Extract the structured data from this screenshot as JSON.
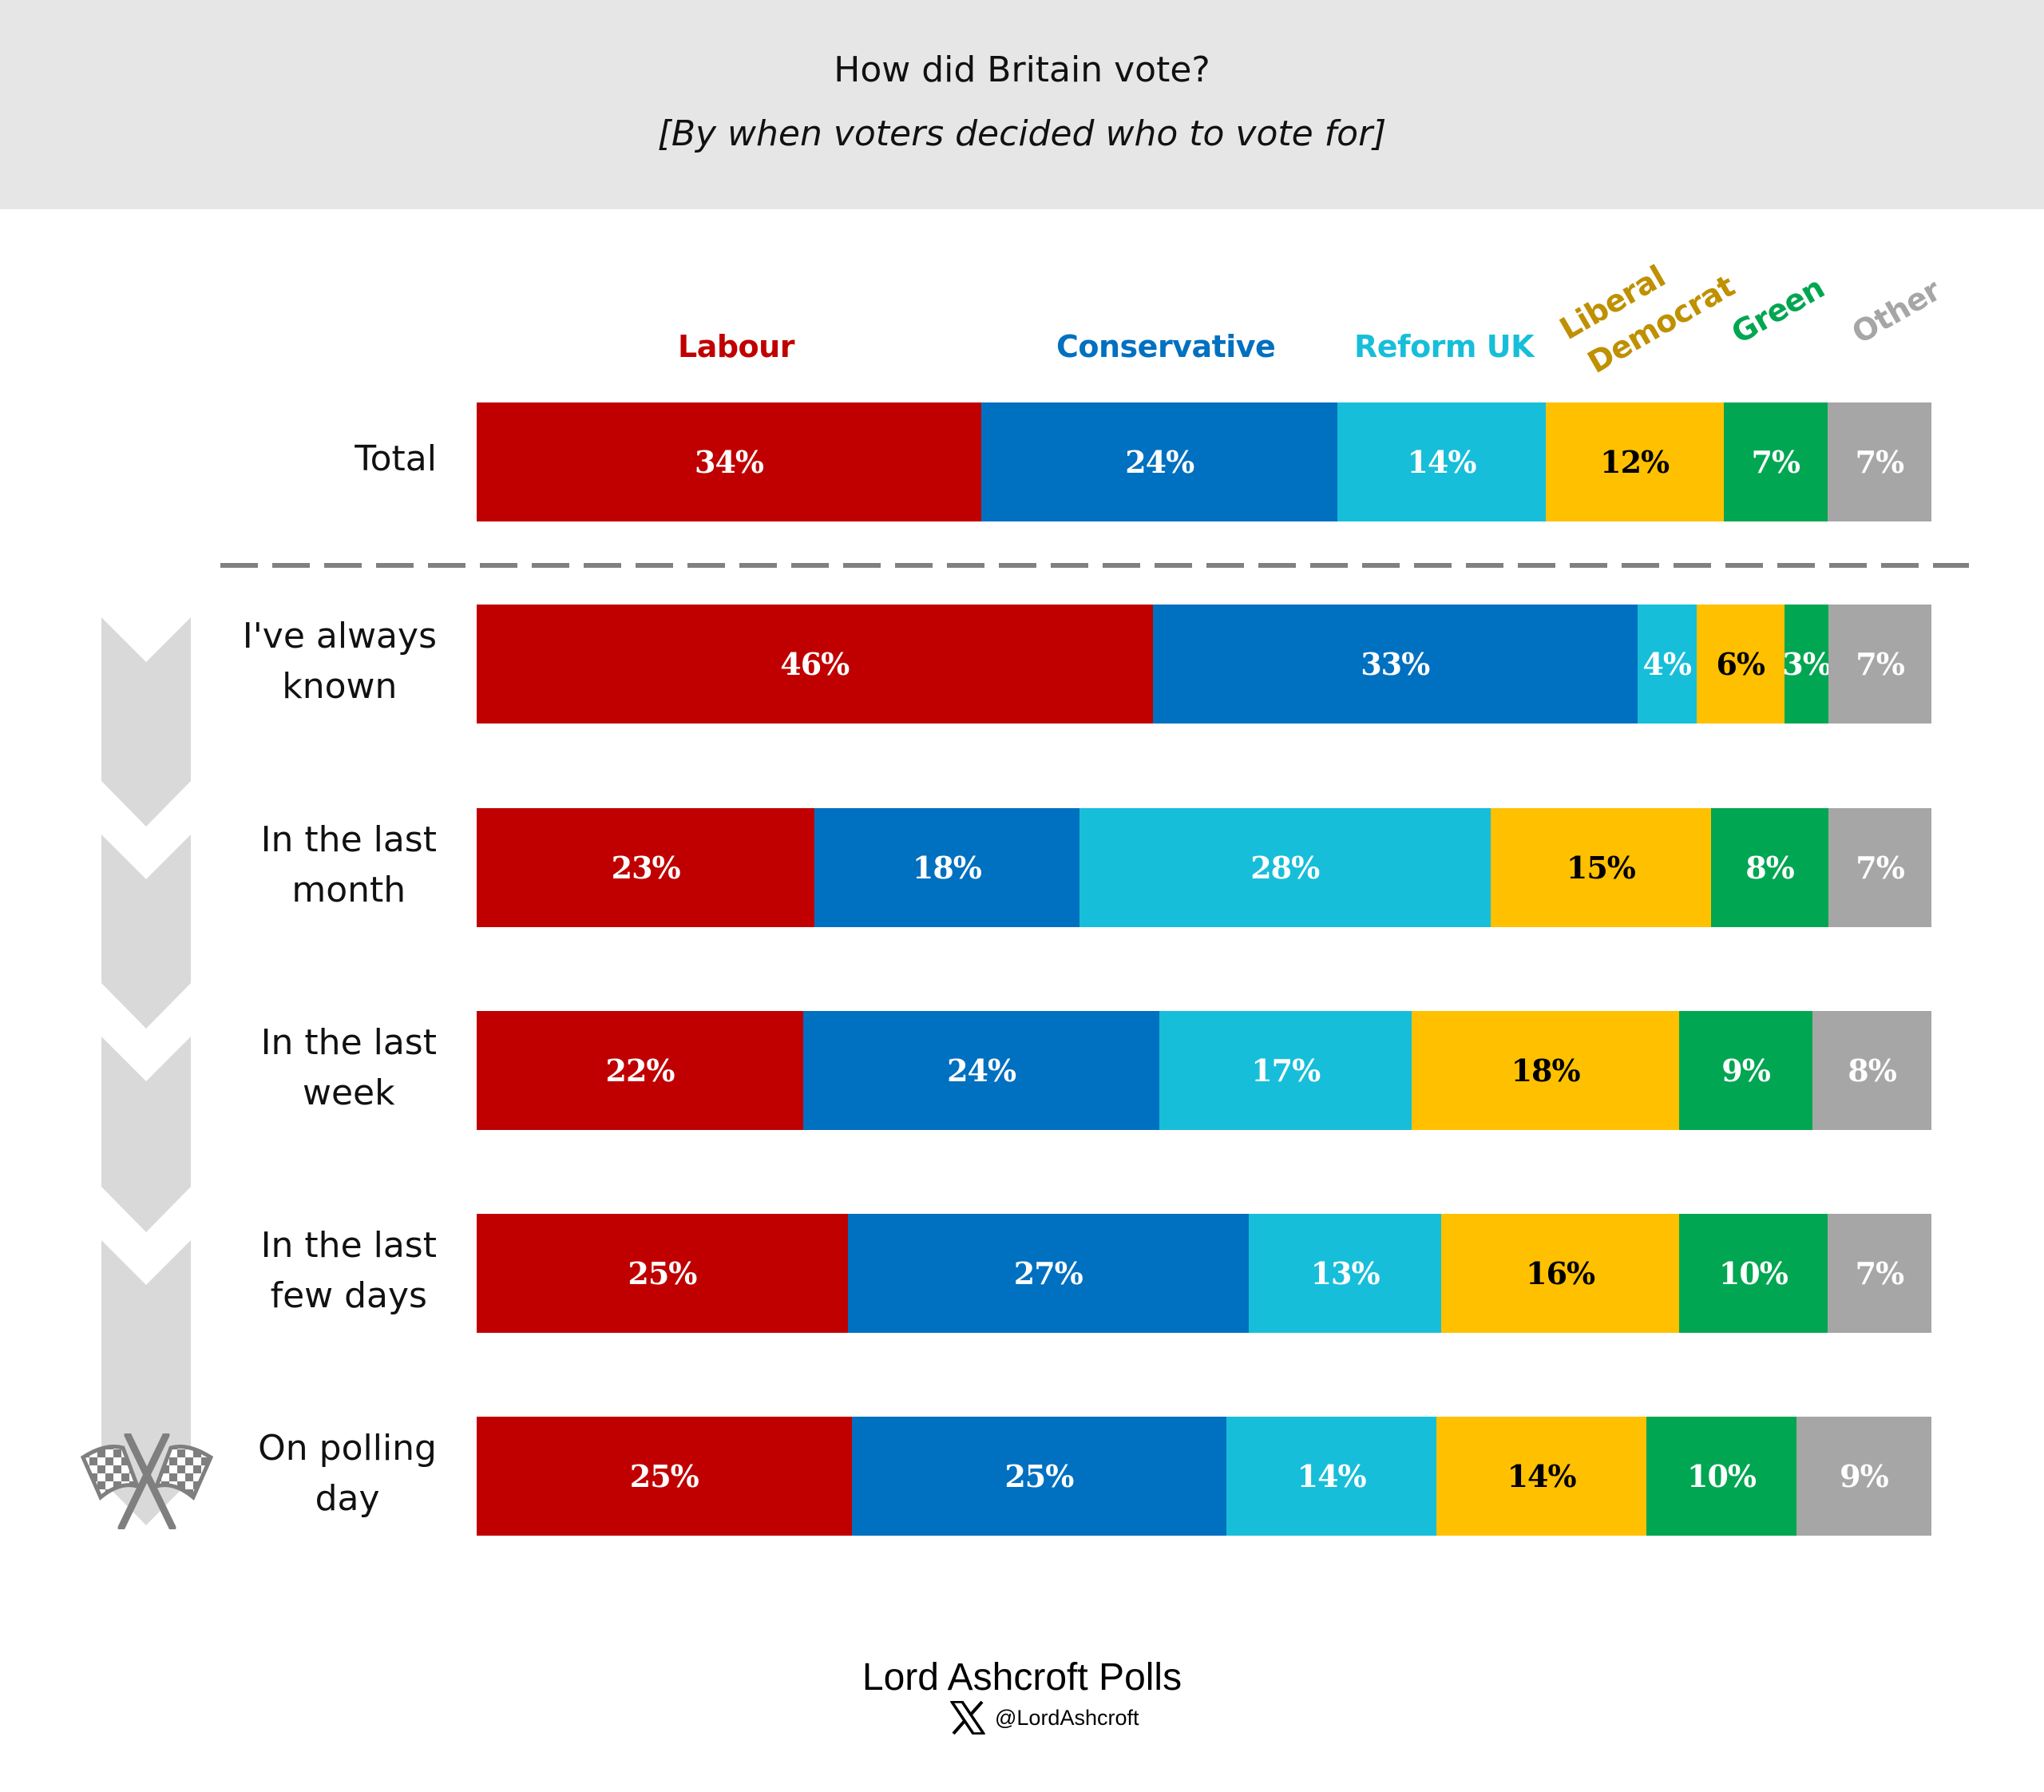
{
  "header": {
    "title": "How did Britain vote?",
    "subtitle": "[By when voters decided who to vote for]"
  },
  "chart_data": {
    "type": "bar",
    "orientation": "horizontal",
    "stacked": true,
    "title": "How did Britain vote?",
    "subtitle": "[By when voters decided who to vote for]",
    "unit": "%",
    "categories": [
      "Total",
      "I've always known",
      "In the last month",
      "In the last week",
      "In the last few days",
      "On polling day"
    ],
    "category_lines": [
      [
        "Total"
      ],
      [
        "I've always",
        "known"
      ],
      [
        "In the last",
        "month"
      ],
      [
        "In the last",
        "week"
      ],
      [
        "In the last",
        "few days"
      ],
      [
        "On polling",
        "day"
      ]
    ],
    "series": [
      {
        "name": "Labour",
        "legend_lines": [
          "Labour"
        ],
        "color": "#C00000",
        "label_color": "#C00000",
        "text_color": "#FFFFFF",
        "values": [
          34,
          46,
          23,
          22,
          25,
          25
        ]
      },
      {
        "name": "Conservative",
        "legend_lines": [
          "Conservative"
        ],
        "color": "#0070C0",
        "label_color": "#0070C0",
        "text_color": "#FFFFFF",
        "values": [
          24,
          33,
          18,
          24,
          27,
          25
        ]
      },
      {
        "name": "Reform UK",
        "legend_lines": [
          "Reform UK"
        ],
        "color": "#17BED9",
        "label_color": "#17BED9",
        "text_color": "#FFFFFF",
        "values": [
          14,
          4,
          28,
          17,
          13,
          14
        ]
      },
      {
        "name": "Liberal Democrat",
        "legend_lines": [
          "Liberal",
          "Democrat"
        ],
        "color": "#FFC000",
        "label_color": "#BF9000",
        "text_color": "#000000",
        "values": [
          12,
          6,
          15,
          18,
          16,
          14
        ]
      },
      {
        "name": "Green",
        "legend_lines": [
          "Green"
        ],
        "color": "#00A651",
        "label_color": "#00A651",
        "text_color": "#FFFFFF",
        "values": [
          7,
          3,
          8,
          9,
          10,
          10
        ]
      },
      {
        "name": "Other",
        "legend_lines": [
          "Other"
        ],
        "color": "#A6A6A6",
        "label_color": "#A6A6A6",
        "text_color": "#FFFFFF",
        "values": [
          7,
          7,
          7,
          8,
          7,
          9
        ]
      }
    ],
    "legend_position": "top",
    "grid": false,
    "separator_after_category": "Total"
  },
  "footer": {
    "brand": "Lord Ashcroft Polls",
    "handle": "@LordAshcroft",
    "social_icon": "x-logo-icon"
  },
  "decor": {
    "timeline_icon": "chevron-down-icon",
    "finish_icon": "checkered-flags-icon"
  }
}
